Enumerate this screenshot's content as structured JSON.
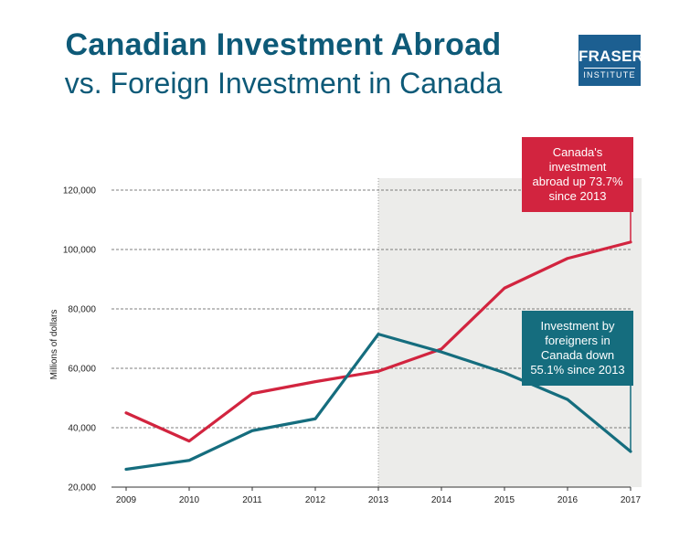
{
  "header": {
    "title": "Canadian Investment Abroad",
    "subtitle": "vs. Foreign Investment in Canada"
  },
  "logo": {
    "line1": "FRASER",
    "line2": "INSTITUTE",
    "color": "#1c5f91"
  },
  "colors": {
    "canada_abroad": "#d2243f",
    "foreign_in_canada": "#156d7e",
    "title": "#0e5a78",
    "shade": "#ececea"
  },
  "callouts": {
    "canada_abroad": "Canada's\ninvestment\nabroad up 73.7%\nsince 2013",
    "foreign_in_canada": "Investment by\nforeigners in\nCanada down\n55.1% since 2013"
  },
  "chart_data": {
    "type": "line",
    "title": "Canadian Investment Abroad vs. Foreign Investment in Canada",
    "xlabel": "",
    "ylabel": "Millions of dollars",
    "x": [
      "2009",
      "2010",
      "2011",
      "2012",
      "2013",
      "2014",
      "2015",
      "2016",
      "2017"
    ],
    "ylim": [
      20000,
      120000
    ],
    "yticks": [
      20000,
      40000,
      60000,
      80000,
      100000,
      120000
    ],
    "ytick_labels": [
      "20,000",
      "40,000",
      "60,000",
      "80,000",
      "100,000",
      "120,000"
    ],
    "grid": "horizontal dashed",
    "shaded_from": "2013",
    "series": [
      {
        "name": "Canada's investment abroad",
        "values": [
          45000,
          35500,
          51500,
          55500,
          59000,
          66500,
          87000,
          97000,
          102500
        ]
      },
      {
        "name": "Investment by foreigners in Canada",
        "values": [
          26000,
          29000,
          39000,
          43000,
          71500,
          65500,
          58500,
          49500,
          32000
        ]
      }
    ]
  }
}
